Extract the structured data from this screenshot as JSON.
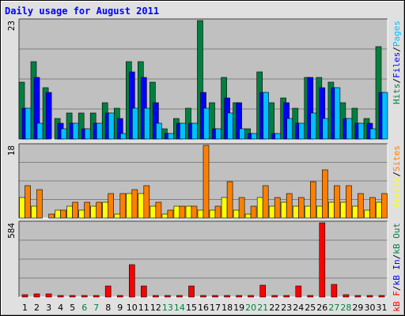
{
  "chart_data": {
    "title": "Daily usage for August 2011",
    "type": "bar",
    "days": [
      "1",
      "2",
      "3",
      "4",
      "5",
      "6",
      "7",
      "8",
      "9",
      "10",
      "11",
      "12",
      "13",
      "14",
      "15",
      "16",
      "17",
      "18",
      "19",
      "20",
      "21",
      "22",
      "23",
      "24",
      "25",
      "26",
      "27",
      "28",
      "29",
      "30",
      "31"
    ],
    "weekend_days": [
      6,
      7,
      13,
      14,
      20,
      21,
      27,
      28
    ],
    "colors": {
      "hits": "#008040",
      "files": "#0000ff",
      "pages": "#00c0ff",
      "visits": "#ffff00",
      "sites": "#ff8000",
      "kb_in": "#0000ff",
      "kb_out": "#008040",
      "kb_f": "#ff0000",
      "title": "#0000ff",
      "weekend_tick": "#008040"
    },
    "panels": [
      {
        "id": "hits",
        "max_label": "23",
        "ymax": 23,
        "right_label": [
          {
            "text": "Hits",
            "color": "#008040"
          },
          {
            "text": "/",
            "color": "#000000"
          },
          {
            "text": "Files",
            "color": "#0000ff"
          },
          {
            "text": "/",
            "color": "#000000"
          },
          {
            "text": "Pages",
            "color": "#00c0ff"
          }
        ],
        "series": [
          {
            "name": "Hits",
            "color": "#008040",
            "values": [
              11,
              15,
              10,
              4,
              5,
              5,
              5,
              7,
              6,
              15,
              15,
              11,
              2,
              4,
              6,
              23,
              7,
              12,
              7,
              2,
              13,
              7,
              8,
              6,
              12,
              12,
              11,
              7,
              6,
              4,
              18
            ]
          },
          {
            "name": "Files",
            "color": "#0000ff",
            "values": [
              6,
              12,
              9,
              3,
              3,
              2,
              3,
              5,
              4,
              13,
              12,
              7,
              1,
              3,
              3,
              9,
              2,
              8,
              7,
              1,
              9,
              1,
              7,
              3,
              12,
              10,
              10,
              4,
              3,
              3,
              9
            ]
          },
          {
            "name": "Pages",
            "color": "#00c0ff",
            "values": [
              6,
              3,
              0,
              2,
              3,
              2,
              3,
              5,
              1,
              6,
              6,
              3,
              1,
              3,
              3,
              6,
              2,
              5,
              2,
              1,
              9,
              1,
              4,
              3,
              5,
              4,
              10,
              4,
              3,
              2,
              9
            ]
          }
        ]
      },
      {
        "id": "sites",
        "max_label": "18",
        "ymax": 18,
        "right_label": [
          {
            "text": "Visits",
            "color": "#ffff00"
          },
          {
            "text": "/",
            "color": "#000000"
          },
          {
            "text": "Sites",
            "color": "#ff8000"
          }
        ],
        "series": [
          {
            "name": "Visits",
            "color": "#ffff00",
            "values": [
              5,
              3,
              0,
              2,
              3,
              2,
              3,
              4,
              1,
              6,
              6,
              3,
              1,
              3,
              3,
              2,
              2,
              5,
              2,
              1,
              5,
              3,
              4,
              3,
              3,
              3,
              4,
              4,
              3,
              2,
              4
            ]
          },
          {
            "name": "Sites",
            "color": "#ff8000",
            "values": [
              8,
              7,
              1,
              2,
              4,
              4,
              4,
              6,
              6,
              7,
              8,
              4,
              2,
              3,
              3,
              18,
              3,
              9,
              5,
              3,
              8,
              5,
              6,
              5,
              9,
              12,
              8,
              8,
              6,
              5,
              6
            ]
          }
        ]
      },
      {
        "id": "kbytes",
        "max_label": "584",
        "ymax": 584,
        "right_label": [
          {
            "text": "kB F",
            "color": "#ff0000"
          },
          {
            "text": "/",
            "color": "#000000"
          },
          {
            "text": "kB In",
            "color": "#0000ff"
          },
          {
            "text": "/",
            "color": "#000000"
          },
          {
            "text": "kB Out",
            "color": "#008040"
          }
        ],
        "series": [
          {
            "name": "kB F",
            "color": "#ff0000",
            "values": [
              18,
              22,
              22,
              10,
              10,
              10,
              10,
              90,
              10,
              255,
              85,
              10,
              10,
              10,
              85,
              10,
              10,
              15,
              10,
              10,
              95,
              10,
              15,
              90,
              10,
              584,
              100,
              18,
              10,
              10,
              10
            ]
          }
        ]
      }
    ]
  }
}
